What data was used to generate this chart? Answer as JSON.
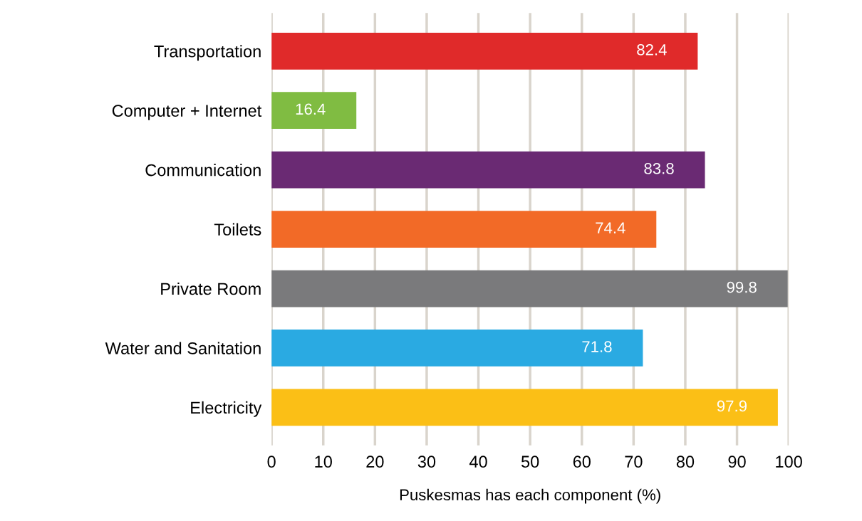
{
  "chart_data": {
    "type": "bar",
    "orientation": "horizontal",
    "xlabel": "Puskesmas has each component (%)",
    "categories": [
      "Transportation",
      "Computer + Internet",
      "Communication",
      "Toilets",
      "Private Room",
      "Water and Sanitation",
      "Electricity"
    ],
    "values": [
      82.4,
      16.4,
      83.8,
      74.4,
      99.8,
      71.8,
      97.9
    ],
    "colors": [
      "#e02a2a",
      "#80bc42",
      "#6a2a73",
      "#f26a27",
      "#7a7a7c",
      "#2aaae2",
      "#fbbf16"
    ],
    "xlim": [
      0,
      100
    ],
    "xticks": [
      0,
      10,
      20,
      30,
      40,
      50,
      60,
      70,
      80,
      90,
      100
    ],
    "grid": "x",
    "data_labels": true
  }
}
